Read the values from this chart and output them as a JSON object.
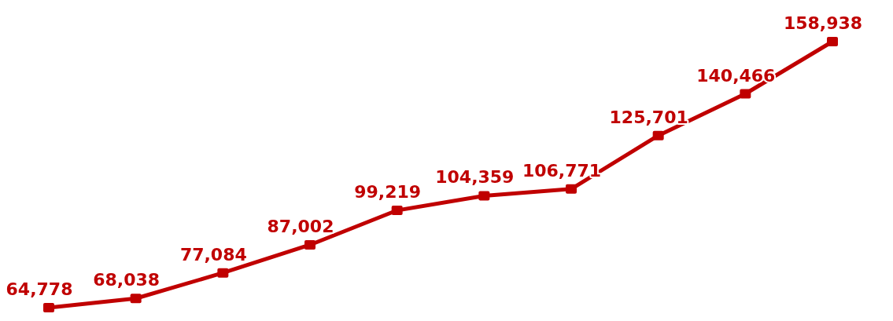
{
  "chart_data": {
    "type": "line",
    "categories": [
      null,
      null,
      null,
      null,
      null,
      null,
      null,
      null,
      null,
      null
    ],
    "series": [
      {
        "color": "#c00000",
        "values": [
          64778,
          68038,
          77084,
          87002,
          99219,
          104359,
          106771,
          125701,
          140466,
          158938
        ],
        "value_labels": [
          "64,778",
          "68,038",
          "77,084",
          "87,002",
          "99,219",
          "104,359",
          "106,771",
          "125,701",
          "140,466",
          "158,938"
        ]
      }
    ],
    "relative": false,
    "marker": "square",
    "line_style": "solid"
  }
}
